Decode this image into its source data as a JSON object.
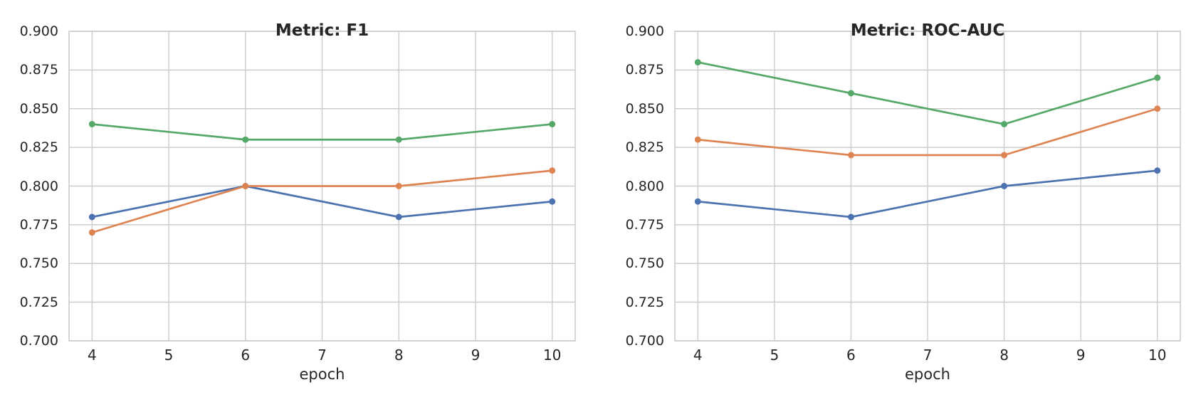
{
  "figure": {
    "background": "#FFFFFF"
  },
  "style": {
    "grid_color": "#CCCCCC",
    "spine_color": "#CCCCCC",
    "text_color": "#262626",
    "series_colors": [
      "#4C72B0",
      "#DD8452",
      "#55A868"
    ]
  },
  "chart_data": [
    {
      "type": "line",
      "title": "Metric: F1",
      "xlabel": "epoch",
      "x": [
        4,
        6,
        8,
        10
      ],
      "xlim": [
        3.7,
        10.3
      ],
      "ylim": [
        0.7,
        0.9
      ],
      "xtick_labels": [
        "4",
        "5",
        "6",
        "7",
        "8",
        "9",
        "10"
      ],
      "ytick_labels": [
        "0.700",
        "0.725",
        "0.750",
        "0.775",
        "0.800",
        "0.825",
        "0.850",
        "0.875",
        "0.900"
      ],
      "grid": true,
      "legend": "none",
      "marker": "circle",
      "series": [
        {
          "color": "#4C72B0",
          "values": [
            0.78,
            0.8,
            0.78,
            0.79
          ]
        },
        {
          "color": "#DD8452",
          "values": [
            0.77,
            0.8,
            0.8,
            0.81
          ]
        },
        {
          "color": "#55A868",
          "values": [
            0.84,
            0.83,
            0.83,
            0.84
          ]
        }
      ]
    },
    {
      "type": "line",
      "title": "Metric: ROC-AUC",
      "xlabel": "epoch",
      "x": [
        4,
        6,
        8,
        10
      ],
      "xlim": [
        3.7,
        10.3
      ],
      "ylim": [
        0.7,
        0.9
      ],
      "xtick_labels": [
        "4",
        "5",
        "6",
        "7",
        "8",
        "9",
        "10"
      ],
      "ytick_labels": [
        "0.700",
        "0.725",
        "0.750",
        "0.775",
        "0.800",
        "0.825",
        "0.850",
        "0.875",
        "0.900"
      ],
      "grid": true,
      "legend": "none",
      "marker": "circle",
      "series": [
        {
          "color": "#4C72B0",
          "values": [
            0.79,
            0.78,
            0.8,
            0.81
          ]
        },
        {
          "color": "#DD8452",
          "values": [
            0.83,
            0.82,
            0.82,
            0.85
          ]
        },
        {
          "color": "#55A868",
          "values": [
            0.88,
            0.86,
            0.84,
            0.87
          ]
        }
      ]
    }
  ]
}
